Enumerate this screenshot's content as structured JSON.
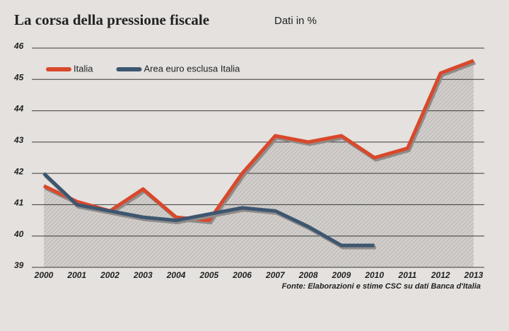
{
  "chart_data": {
    "type": "line",
    "title": "La corsa della pressione fiscale",
    "subtitle": "Dati in %",
    "source": "Fonte: Elaborazioni e stime CSC su dati Banca d'Italia",
    "categories": [
      "2000",
      "2001",
      "2002",
      "2003",
      "2004",
      "2005",
      "2006",
      "2007",
      "2008",
      "2009",
      "2010",
      "2011",
      "2012",
      "2013"
    ],
    "series": [
      {
        "name": "Italia",
        "color": "#d9482b",
        "values": [
          41.6,
          41.1,
          40.8,
          41.5,
          40.6,
          40.5,
          42.0,
          43.2,
          43.0,
          43.2,
          42.5,
          42.8,
          45.2,
          45.6
        ]
      },
      {
        "name": "Area euro esclusa Italia",
        "color": "#3d5670",
        "values": [
          42.0,
          41.0,
          40.8,
          40.6,
          40.5,
          40.7,
          40.9,
          40.8,
          40.3,
          39.7,
          39.7,
          null,
          null,
          null
        ]
      }
    ],
    "ylim": [
      39,
      46
    ],
    "yticks": [
      39,
      40,
      41,
      42,
      43,
      44,
      45,
      46
    ],
    "grid": true,
    "legend": "upper left"
  }
}
